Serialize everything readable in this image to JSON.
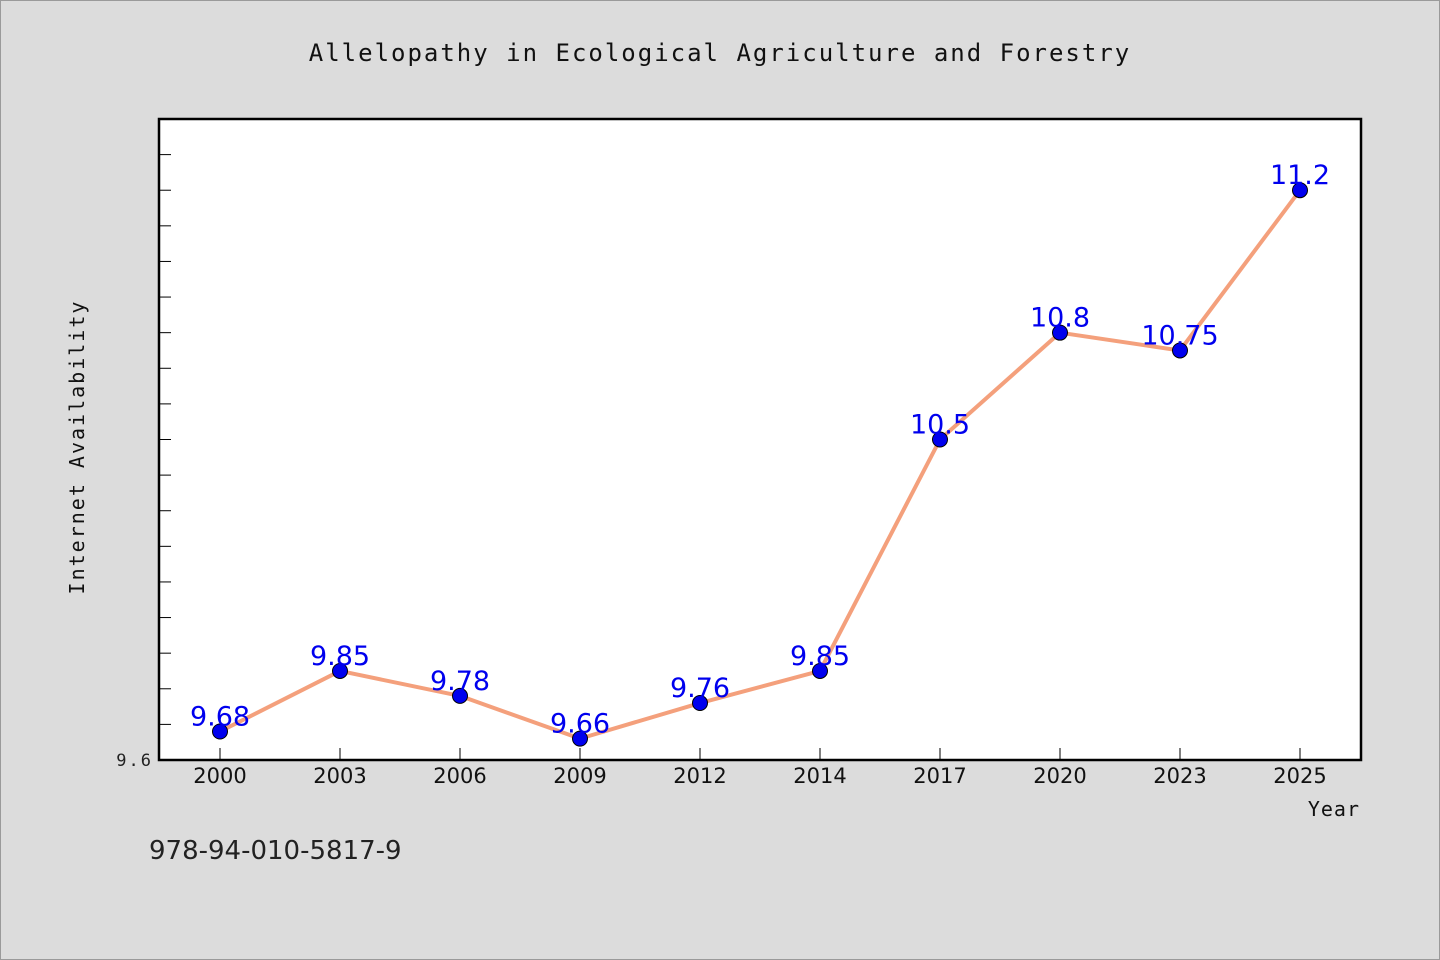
{
  "chart_data": {
    "type": "line",
    "title": "Allelopathy in Ecological Agriculture and Forestry",
    "xlabel": "Year",
    "ylabel": "Internet Availability",
    "categories": [
      "2000",
      "2003",
      "2006",
      "2009",
      "2012",
      "2014",
      "2017",
      "2020",
      "2023",
      "2025"
    ],
    "series": [
      {
        "values": [
          9.68,
          9.85,
          9.78,
          9.66,
          9.76,
          9.85,
          10.5,
          10.8,
          10.75,
          11.2
        ],
        "labels": [
          "9.68",
          "9.85",
          "9.78",
          "9.66",
          "9.76",
          "9.85",
          "10.5",
          "10.8",
          "10.75",
          "11.2"
        ]
      }
    ],
    "ylim": [
      9.6,
      11.4
    ],
    "yticks": [
      "9.6"
    ],
    "grid": false,
    "colors": {
      "line": "#f4a07c",
      "marker": "#0000ee",
      "label": "#0000ee",
      "background": "#dcdcdc",
      "plot_bg": "#ffffff"
    }
  },
  "footer": {
    "isbn": "978-94-010-5817-9"
  }
}
